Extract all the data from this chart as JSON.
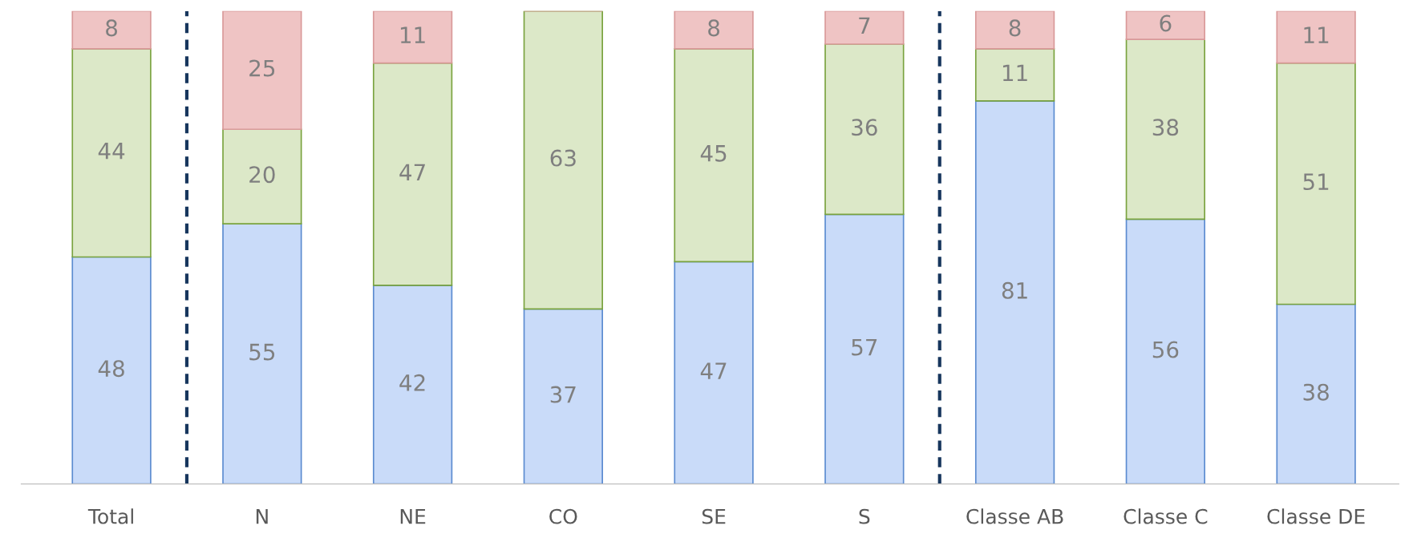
{
  "chart_data": {
    "type": "bar",
    "stacked": true,
    "data_labels": true,
    "legend": false,
    "grid": false,
    "categories": [
      "Total",
      "N",
      "NE",
      "CO",
      "SE",
      "S",
      "Classe AB",
      "Classe C",
      "Classe DE"
    ],
    "series": [
      {
        "color": "#c9dbf9",
        "values": [
          48,
          55,
          42,
          37,
          47,
          57,
          81,
          56,
          38
        ]
      },
      {
        "color": "#dce8c8",
        "values": [
          44,
          20,
          47,
          63,
          45,
          36,
          11,
          38,
          51
        ]
      },
      {
        "color": "#efc4c4",
        "values": [
          8,
          25,
          11,
          null,
          8,
          7,
          8,
          6,
          11
        ]
      }
    ]
  }
}
